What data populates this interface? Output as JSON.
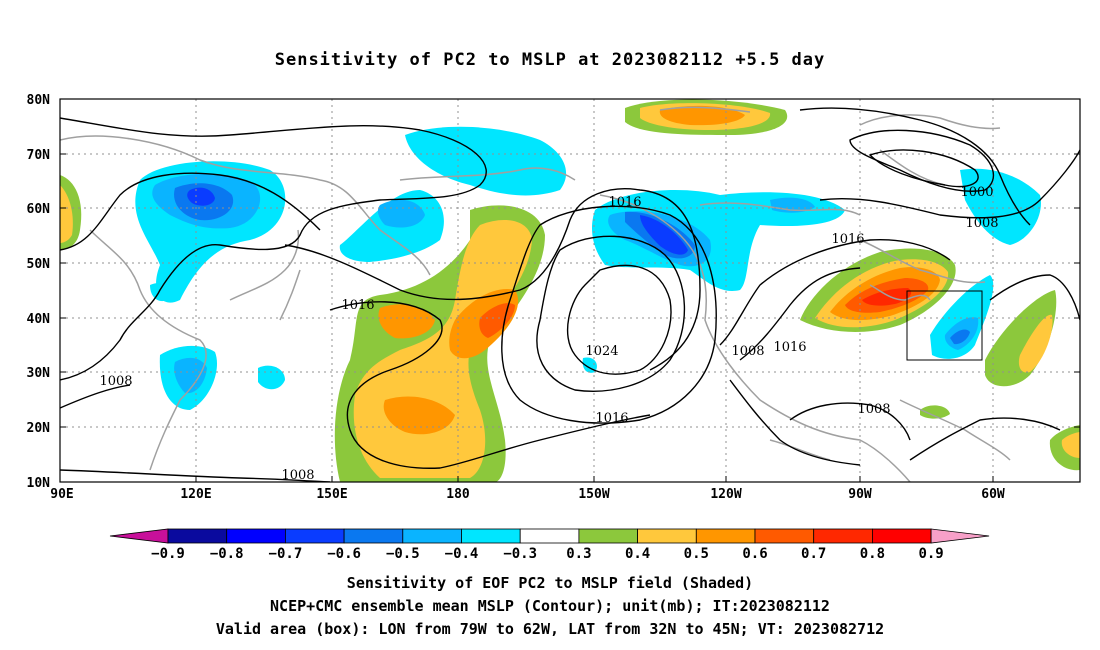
{
  "title": "Sensitivity of PC2 to MSLP at 2023082112 +5.5 day",
  "map": {
    "lon_labels": [
      "90E",
      "120E",
      "150E",
      "180",
      "150W",
      "120W",
      "90W",
      "60W"
    ],
    "lat_labels": [
      "80N",
      "70N",
      "60N",
      "50N",
      "40N",
      "30N",
      "20N",
      "10N"
    ],
    "contour_labels": [
      "1016",
      "1016",
      "1024",
      "1016",
      "1008",
      "1016",
      "1008",
      "1000",
      "1008",
      "1016",
      "1008",
      "1008"
    ],
    "box": {
      "lon_west": "79W",
      "lon_east": "62W",
      "lat_south": "32N",
      "lat_north": "45N"
    }
  },
  "colorbar": {
    "labels": [
      "−0.9",
      "−0.8",
      "−0.7",
      "−0.6",
      "−0.5",
      "−0.4",
      "−0.3",
      "0.3",
      "0.4",
      "0.5",
      "0.6",
      "0.7",
      "0.8",
      "0.9"
    ],
    "colors": [
      "#0a0a9e",
      "#0000ff",
      "#0a3cff",
      "#0a78f0",
      "#0ab4ff",
      "#00e6ff",
      "#ffffff",
      "#8cc83c",
      "#ffc83c",
      "#ff9600",
      "#ff5a00",
      "#ff2800",
      "#ff0000"
    ],
    "low_end_color": "#c8109a",
    "high_end_color": "#f7a0c8"
  },
  "captions": {
    "line1": "Sensitivity of EOF PC2 to MSLP field (Shaded)",
    "line2": "NCEP+CMC ensemble mean MSLP (Contour); unit(mb); IT:2023082112",
    "line3": "Valid area (box): LON from 79W to 62W, LAT from 32N to 45N; VT: 2023082712"
  }
}
